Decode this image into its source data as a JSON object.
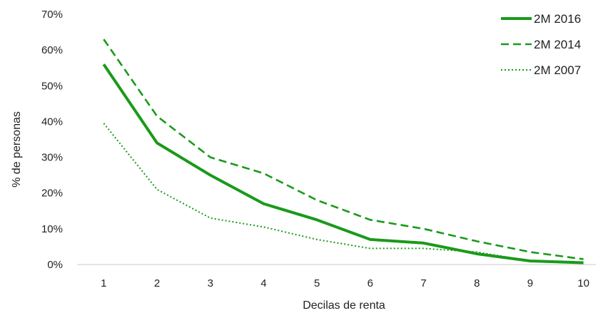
{
  "chart_data": {
    "type": "line",
    "xlabel": "Decilas de renta",
    "ylabel": "% de personas",
    "categories": [
      "1",
      "2",
      "3",
      "4",
      "5",
      "6",
      "7",
      "8",
      "9",
      "10"
    ],
    "y_ticks": [
      "0%",
      "10%",
      "20%",
      "30%",
      "40%",
      "50%",
      "60%",
      "70%"
    ],
    "ylim": [
      0,
      70
    ],
    "grid": false,
    "legend_position": "top-right",
    "color": "#1a9a1a",
    "series": [
      {
        "name": "2M 2016",
        "style": "solid",
        "values": [
          56,
          34,
          25,
          17,
          12.5,
          7,
          6,
          3,
          1,
          0.5
        ]
      },
      {
        "name": "2M 2014",
        "style": "dashed",
        "values": [
          63,
          41.5,
          30,
          25.5,
          18,
          12.5,
          10,
          6.5,
          3.5,
          1.5
        ]
      },
      {
        "name": "2M 2007",
        "style": "dotted",
        "values": [
          39.5,
          21,
          13,
          10.5,
          7,
          4.5,
          4.5,
          3.5,
          1,
          0.5
        ]
      }
    ]
  }
}
